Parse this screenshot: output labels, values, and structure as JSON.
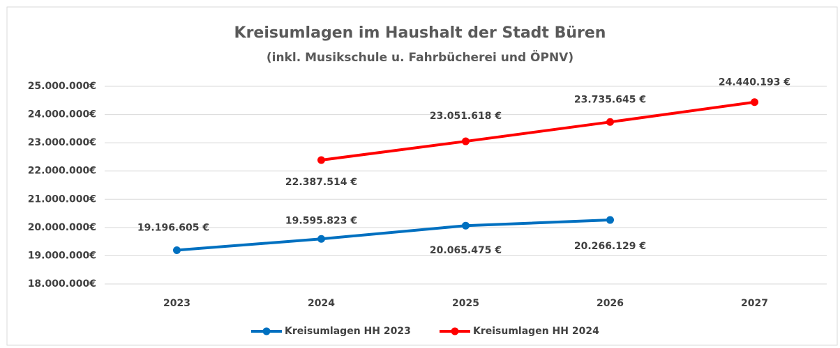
{
  "chart_data": {
    "type": "line",
    "title": "Kreisumlagen im Haushalt der Stadt Büren",
    "subtitle": "(inkl. Musikschule u. Fahrbücherei und ÖPNV)",
    "categories": [
      "2023",
      "2024",
      "2025",
      "2026",
      "2027"
    ],
    "series": [
      {
        "name": "Kreisumlagen HH 2023",
        "color": "#0070c0",
        "values": [
          19196605,
          19595823,
          20065475,
          20266129,
          null
        ],
        "value_labels": [
          "19.196.605 €",
          "19.595.823 €",
          "20.065.475 €",
          "20.266.129 €",
          null
        ]
      },
      {
        "name": "Kreisumlagen HH 2024",
        "color": "#ff0000",
        "values": [
          null,
          22387514,
          23051618,
          23735645,
          24440193
        ],
        "value_labels": [
          null,
          "22.387.514 €",
          "23.051.618 €",
          "23.735.645 €",
          "24.440.193 €"
        ]
      }
    ],
    "ylim": [
      18000000,
      25000000
    ],
    "yticks": [
      {
        "value": 18000000,
        "label": "18.000.000€"
      },
      {
        "value": 19000000,
        "label": "19.000.000€"
      },
      {
        "value": 20000000,
        "label": "20.000.000€"
      },
      {
        "value": 21000000,
        "label": "21.000.000€"
      },
      {
        "value": 22000000,
        "label": "22.000.000€"
      },
      {
        "value": 23000000,
        "label": "23.000.000€"
      },
      {
        "value": 24000000,
        "label": "24.000.000€"
      },
      {
        "value": 25000000,
        "label": "25.000.000€"
      }
    ],
    "grid": true,
    "legend": "bottom"
  }
}
